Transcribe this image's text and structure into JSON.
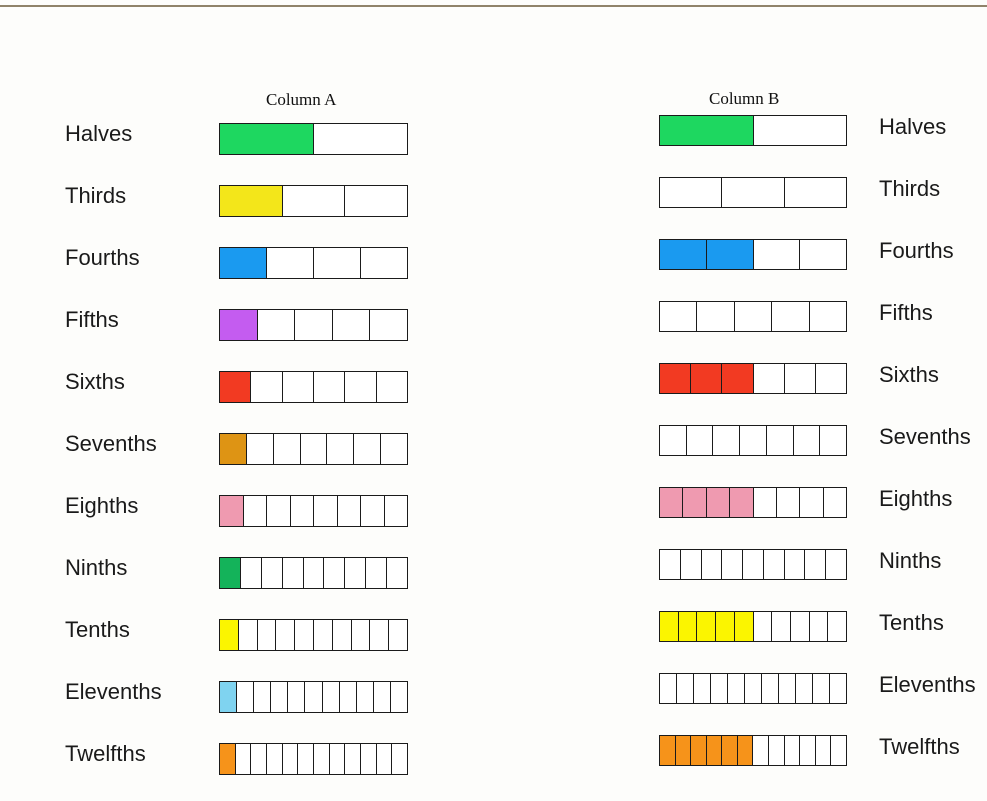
{
  "column_a": {
    "heading": "Column A",
    "rows": [
      {
        "label": "Halves",
        "parts": 2,
        "shaded": 1,
        "color": "#1ed760"
      },
      {
        "label": "Thirds",
        "parts": 3,
        "shaded": 1,
        "color": "#f3e61a"
      },
      {
        "label": "Fourths",
        "parts": 4,
        "shaded": 1,
        "color": "#1a9af0"
      },
      {
        "label": "Fifths",
        "parts": 5,
        "shaded": 1,
        "color": "#c45cf0"
      },
      {
        "label": "Sixths",
        "parts": 6,
        "shaded": 1,
        "color": "#f23a22"
      },
      {
        "label": "Sevenths",
        "parts": 7,
        "shaded": 1,
        "color": "#de9414"
      },
      {
        "label": "Eighths",
        "parts": 8,
        "shaded": 1,
        "color": "#ef9ab0"
      },
      {
        "label": "Ninths",
        "parts": 9,
        "shaded": 1,
        "color": "#14b35a"
      },
      {
        "label": "Tenths",
        "parts": 10,
        "shaded": 1,
        "color": "#fbf500"
      },
      {
        "label": "Elevenths",
        "parts": 11,
        "shaded": 1,
        "color": "#7fd3f0"
      },
      {
        "label": "Twelfths",
        "parts": 12,
        "shaded": 1,
        "color": "#f6931a"
      }
    ]
  },
  "column_b": {
    "heading": "Column B",
    "rows": [
      {
        "label": "Halves",
        "parts": 2,
        "shaded": 1,
        "color": "#1ed760"
      },
      {
        "label": "Thirds",
        "parts": 3,
        "shaded": 0,
        "color": "#ffffff"
      },
      {
        "label": "Fourths",
        "parts": 4,
        "shaded": 2,
        "color": "#1a9af0"
      },
      {
        "label": "Fifths",
        "parts": 5,
        "shaded": 0,
        "color": "#ffffff"
      },
      {
        "label": "Sixths",
        "parts": 6,
        "shaded": 3,
        "color": "#f23a22"
      },
      {
        "label": "Sevenths",
        "parts": 7,
        "shaded": 0,
        "color": "#ffffff"
      },
      {
        "label": "Eighths",
        "parts": 8,
        "shaded": 4,
        "color": "#ef9ab0"
      },
      {
        "label": "Ninths",
        "parts": 9,
        "shaded": 0,
        "color": "#ffffff"
      },
      {
        "label": "Tenths",
        "parts": 10,
        "shaded": 5,
        "color": "#fbf500"
      },
      {
        "label": "Elevenths",
        "parts": 11,
        "shaded": 0,
        "color": "#ffffff"
      },
      {
        "label": "Twelfths",
        "parts": 12,
        "shaded": 6,
        "color": "#f6931a"
      }
    ]
  }
}
